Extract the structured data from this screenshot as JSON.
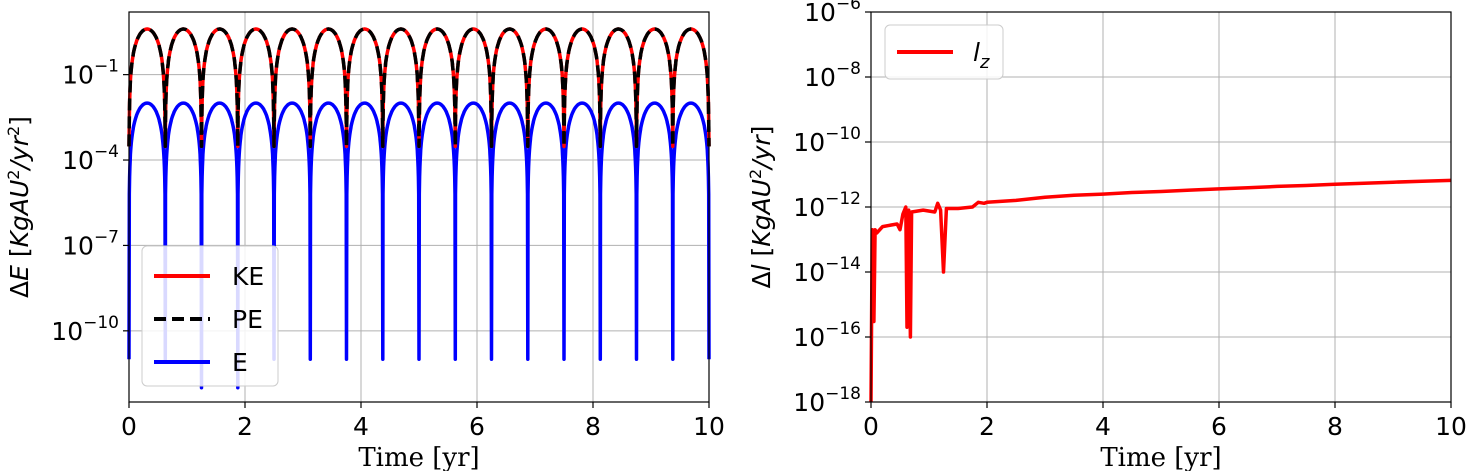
{
  "chart_data": [
    {
      "type": "line",
      "title": "",
      "xlabel": "Time [yr]",
      "ylabel": "ΔE [KgAU²/yr²]",
      "xlim": [
        0,
        10
      ],
      "ylim_log10": [
        -12.5,
        1.2
      ],
      "y_scale": "log",
      "grid": true,
      "legend_position": "lower-left",
      "x_ticks": [
        0,
        2,
        4,
        6,
        8,
        10
      ],
      "y_tick_exponents": [
        -10,
        -7,
        -4,
        -1
      ],
      "series": [
        {
          "name": "KE",
          "color": "#ff0000",
          "style": "solid",
          "description_peaks_log10": 0.6,
          "period_yr": 0.625,
          "peaks_at_x": [
            0.3125,
            0.9375,
            1.5625,
            2.1875,
            2.8125,
            3.4375,
            4.0625,
            4.6875,
            5.3125,
            5.9375,
            6.5625,
            7.1875,
            7.8125,
            8.4375,
            9.0625,
            9.6875
          ],
          "peak_value": 4.0,
          "minimum_value": 0.0003
        },
        {
          "name": "PE",
          "color": "#000000",
          "style": "dashed",
          "period_yr": 0.625,
          "peaks_at_x": [
            0.3125,
            0.9375,
            1.5625,
            2.1875,
            2.8125,
            3.4375,
            4.0625,
            4.6875,
            5.3125,
            5.9375,
            6.5625,
            7.1875,
            7.8125,
            8.4375,
            9.0625,
            9.6875
          ],
          "peak_value": 4.0,
          "minimum_value": 0.0003
        },
        {
          "name": "E",
          "color": "#0000ff",
          "style": "solid",
          "period_yr": 0.625,
          "peaks_at_x": [
            0.3125,
            0.9375,
            1.5625,
            2.1875,
            2.8125,
            3.4375,
            4.0625,
            4.6875,
            5.3125,
            5.9375,
            6.5625,
            7.1875,
            7.8125,
            8.4375,
            9.0625,
            9.6875
          ],
          "peak_value": 0.01,
          "minimum_values": [
            1e-11,
            1e-11,
            1e-12,
            1e-12,
            1e-11,
            1e-11,
            1e-11,
            1e-11,
            1e-11,
            1e-11,
            1e-11,
            1e-11,
            1e-11,
            1e-11,
            1e-11,
            1e-11
          ]
        }
      ],
      "legend": [
        "KE",
        "PE",
        "E"
      ]
    },
    {
      "type": "line",
      "title": "",
      "xlabel": "Time [yr]",
      "ylabel": "Δl [KgAU²/yr]",
      "xlim": [
        0,
        10
      ],
      "ylim_log10": [
        -18,
        -6
      ],
      "y_scale": "log",
      "grid": true,
      "legend_position": "top-left",
      "x_ticks": [
        0,
        2,
        4,
        6,
        8,
        10
      ],
      "y_tick_exponents": [
        -18,
        -16,
        -14,
        -12,
        -10,
        -8,
        -6
      ],
      "series": [
        {
          "name": "l_z",
          "legend_label_main": "l",
          "legend_label_sub": "z",
          "color": "#ff0000",
          "style": "solid",
          "points": [
            [
              0.0,
              1e-18
            ],
            [
              0.02,
              2e-13
            ],
            [
              0.05,
              3e-16
            ],
            [
              0.07,
              2e-13
            ],
            [
              0.1,
              1.6e-13
            ],
            [
              0.2,
              2.5e-13
            ],
            [
              0.35,
              2.8e-13
            ],
            [
              0.45,
              3e-13
            ],
            [
              0.5,
              2e-13
            ],
            [
              0.55,
              6e-13
            ],
            [
              0.6,
              1e-12
            ],
            [
              0.62,
              2e-16
            ],
            [
              0.65,
              8e-13
            ],
            [
              0.68,
              1e-16
            ],
            [
              0.7,
              7e-13
            ],
            [
              0.9,
              8e-13
            ],
            [
              1.1,
              7e-13
            ],
            [
              1.15,
              1.3e-12
            ],
            [
              1.2,
              8e-13
            ],
            [
              1.25,
              1e-14
            ],
            [
              1.3,
              9e-13
            ],
            [
              1.5,
              9e-13
            ],
            [
              1.75,
              1e-12
            ],
            [
              1.85,
              1.4e-12
            ],
            [
              1.95,
              1.3e-12
            ],
            [
              2.0,
              1.4e-12
            ],
            [
              2.5,
              1.6e-12
            ],
            [
              3.0,
              2e-12
            ],
            [
              3.5,
              2.3e-12
            ],
            [
              4.0,
              2.5e-12
            ],
            [
              4.5,
              2.8e-12
            ],
            [
              5.0,
              3e-12
            ],
            [
              5.5,
              3.3e-12
            ],
            [
              6.0,
              3.6e-12
            ],
            [
              6.5,
              3.9e-12
            ],
            [
              7.0,
              4.3e-12
            ],
            [
              7.5,
              4.6e-12
            ],
            [
              8.0,
              5e-12
            ],
            [
              8.5,
              5.4e-12
            ],
            [
              9.0,
              5.8e-12
            ],
            [
              9.5,
              6.2e-12
            ],
            [
              10.0,
              6.6e-12
            ]
          ]
        }
      ],
      "legend": [
        "l_z"
      ]
    }
  ]
}
